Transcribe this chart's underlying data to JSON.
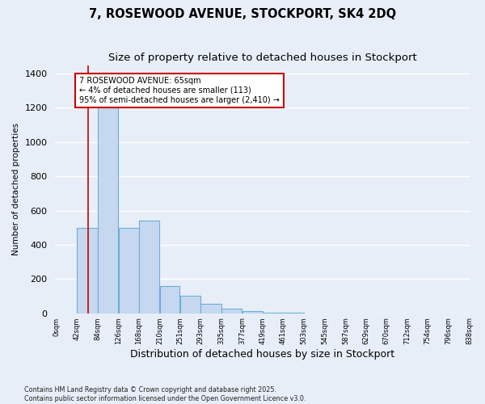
{
  "title": "7, ROSEWOOD AVENUE, STOCKPORT, SK4 2DQ",
  "subtitle": "Size of property relative to detached houses in Stockport",
  "xlabel": "Distribution of detached houses by size in Stockport",
  "ylabel": "Number of detached properties",
  "footer": "Contains HM Land Registry data © Crown copyright and database right 2025.\nContains public sector information licensed under the Open Government Licence v3.0.",
  "bin_edges": [
    0,
    42,
    84,
    126,
    168,
    210,
    251,
    293,
    335,
    377,
    419,
    461,
    503,
    545,
    587,
    629,
    670,
    712,
    754,
    796,
    838
  ],
  "bin_labels": [
    "0sqm",
    "42sqm",
    "84sqm",
    "126sqm",
    "168sqm",
    "210sqm",
    "251sqm",
    "293sqm",
    "335sqm",
    "377sqm",
    "419sqm",
    "461sqm",
    "503sqm",
    "545sqm",
    "587sqm",
    "629sqm",
    "670sqm",
    "712sqm",
    "754sqm",
    "796sqm",
    "838sqm"
  ],
  "bar_heights": [
    0,
    500,
    1270,
    500,
    540,
    160,
    100,
    55,
    25,
    10,
    5,
    2,
    0,
    0,
    0,
    0,
    0,
    0,
    0,
    0
  ],
  "bar_color": "#c5d8f0",
  "bar_edge_color": "#6baed6",
  "property_line_x": 65,
  "property_line_color": "#cc0000",
  "annotation_line1": "7 ROSEWOOD AVENUE: 65sqm",
  "annotation_line2": "← 4% of detached houses are smaller (113)",
  "annotation_line3": "95% of semi-detached houses are larger (2,410) →",
  "annotation_box_color": "#cc0000",
  "ylim": [
    0,
    1450
  ],
  "yticks": [
    0,
    200,
    400,
    600,
    800,
    1000,
    1200,
    1400
  ],
  "background_color": "#e8eef8",
  "grid_color": "#ffffff",
  "title_fontsize": 10.5,
  "subtitle_fontsize": 9.5
}
